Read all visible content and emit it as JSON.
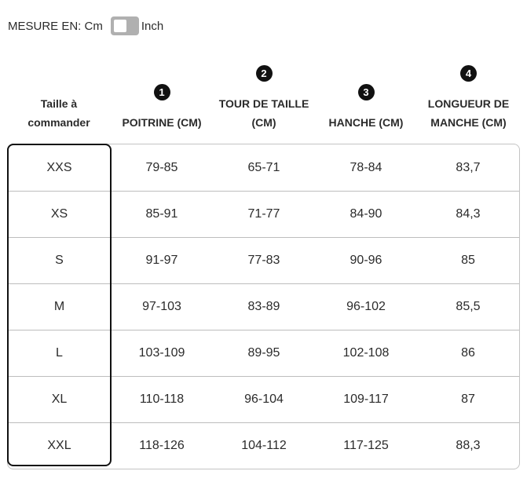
{
  "unit_toggle": {
    "prefix": "MESURE EN: ",
    "left_option": "Cm",
    "right_option": "Inch",
    "selected": "Cm"
  },
  "table": {
    "size_header_lines": [
      "Taille à",
      "commander"
    ],
    "measure_columns": [
      {
        "badge": "1",
        "lines": [
          "POITRINE (CM)"
        ]
      },
      {
        "badge": "2",
        "lines": [
          "TOUR DE TAILLE",
          "(CM)"
        ]
      },
      {
        "badge": "3",
        "lines": [
          "HANCHE (CM)"
        ]
      },
      {
        "badge": "4",
        "lines": [
          "LONGUEUR DE",
          "MANCHE (CM)"
        ]
      }
    ],
    "rows": [
      {
        "size": "XXS",
        "values": [
          "79-85",
          "65-71",
          "78-84",
          "83,7"
        ]
      },
      {
        "size": "XS",
        "values": [
          "85-91",
          "71-77",
          "84-90",
          "84,3"
        ]
      },
      {
        "size": "S",
        "values": [
          "91-97",
          "77-83",
          "90-96",
          "85"
        ]
      },
      {
        "size": "M",
        "values": [
          "97-103",
          "83-89",
          "96-102",
          "85,5"
        ]
      },
      {
        "size": "L",
        "values": [
          "103-109",
          "89-95",
          "102-108",
          "86"
        ]
      },
      {
        "size": "XL",
        "values": [
          "110-118",
          "96-104",
          "109-117",
          "87"
        ]
      },
      {
        "size": "XXL",
        "values": [
          "118-126",
          "104-112",
          "117-125",
          "88,3"
        ]
      }
    ]
  },
  "colors": {
    "text": "#2b2b2b",
    "badge_bg": "#111111",
    "badge_text": "#ffffff",
    "row_separator": "#bdbdbd",
    "table_border": "#c4c4c4",
    "size_outline": "#111111",
    "toggle_track": "#b0b0b0",
    "toggle_knob": "#ffffff"
  }
}
